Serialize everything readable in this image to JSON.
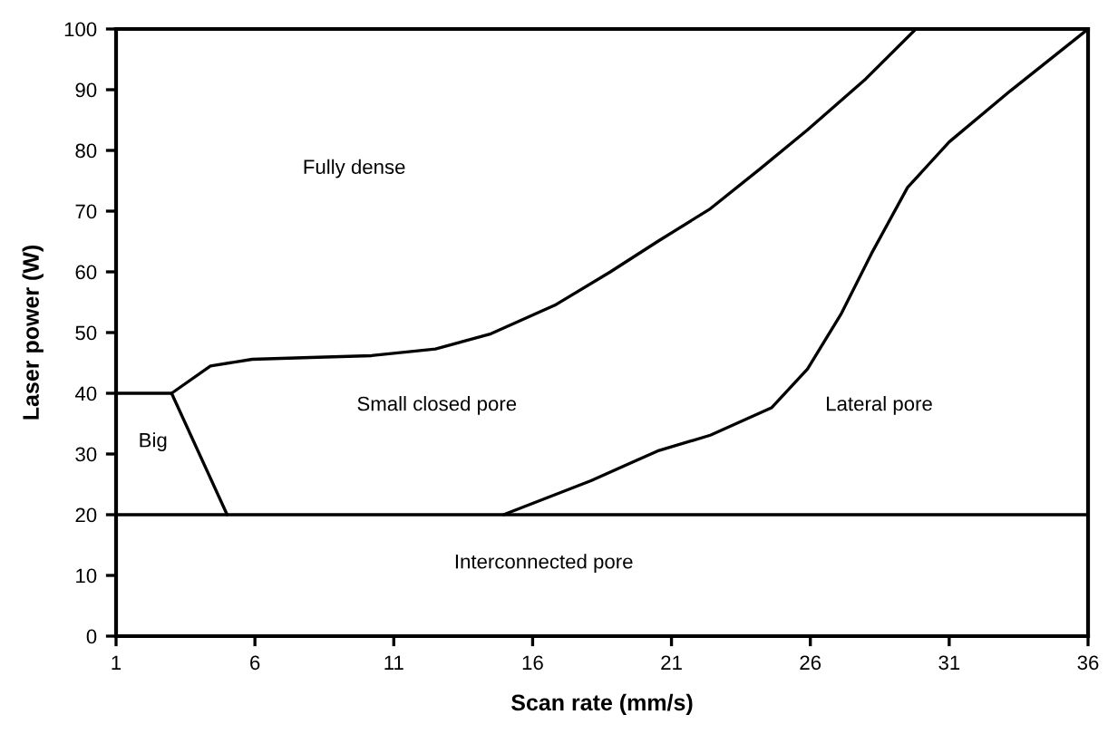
{
  "chart_data": {
    "type": "line",
    "xlabel": "Scan rate (mm/s)",
    "ylabel": "Laser power (W)",
    "xlim": [
      1,
      36
    ],
    "ylim": [
      0,
      100
    ],
    "xticks": [
      1,
      6,
      11,
      16,
      21,
      26,
      31,
      36
    ],
    "yticks": [
      0,
      10,
      20,
      30,
      40,
      50,
      60,
      70,
      80,
      90,
      100
    ],
    "grid": false,
    "marker": "none",
    "line_style": "solid",
    "series": [
      {
        "color": "#000000",
        "x": [
          1,
          3.0,
          5.0
        ],
        "values": [
          40,
          40,
          20
        ]
      },
      {
        "color": "#000000",
        "x": [
          3.0,
          4.4,
          5.9,
          8,
          10.2,
          12.5,
          14.5,
          16.8,
          18.8,
          20.5,
          22.4,
          24.2,
          25.9,
          28.0,
          29.8
        ],
        "values": [
          40,
          44.5,
          45.6,
          45.9,
          46.2,
          47.3,
          49.8,
          54.5,
          60,
          65,
          70.4,
          77,
          83.4,
          91.8,
          100
        ]
      },
      {
        "color": "#000000",
        "x": [
          1,
          36
        ],
        "values": [
          20,
          20
        ]
      },
      {
        "color": "#000000",
        "x": [
          14.95,
          18.1,
          20.5,
          22.4,
          24.6,
          25.9,
          27.1,
          28.2,
          29.5,
          31.0,
          33.2,
          36
        ],
        "values": [
          20,
          25.6,
          30.5,
          33.1,
          37.6,
          44.0,
          53,
          63,
          73.9,
          81.4,
          89.8,
          100
        ]
      }
    ],
    "annotations": [
      "Fully dense",
      "Big",
      "Small closed pore",
      "Lateral pore",
      "Interconnected pore"
    ]
  }
}
